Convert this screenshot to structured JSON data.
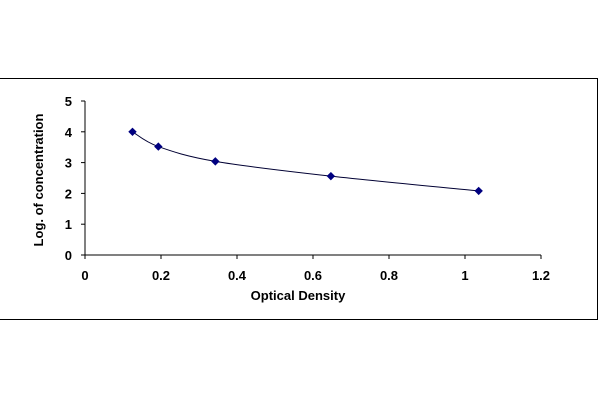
{
  "chart_data": {
    "type": "scatter",
    "title": "",
    "xlabel": "Optical Density",
    "ylabel": "Log. of concentration",
    "xlim": [
      0,
      1.2
    ],
    "ylim": [
      0,
      5
    ],
    "x_ticks": [
      "0",
      "0.2",
      "0.4",
      "0.6",
      "0.8",
      "1",
      "1.2"
    ],
    "y_ticks": [
      "0",
      "1",
      "2",
      "3",
      "4",
      "5"
    ],
    "grid": false,
    "legend": "none",
    "series": [
      {
        "x": [
          0.125,
          0.193,
          0.343,
          0.647,
          1.036
        ],
        "y": [
          4.0,
          3.52,
          3.04,
          2.56,
          2.08
        ],
        "marker": "diamond",
        "color": "#000080",
        "trendline": true
      }
    ]
  }
}
